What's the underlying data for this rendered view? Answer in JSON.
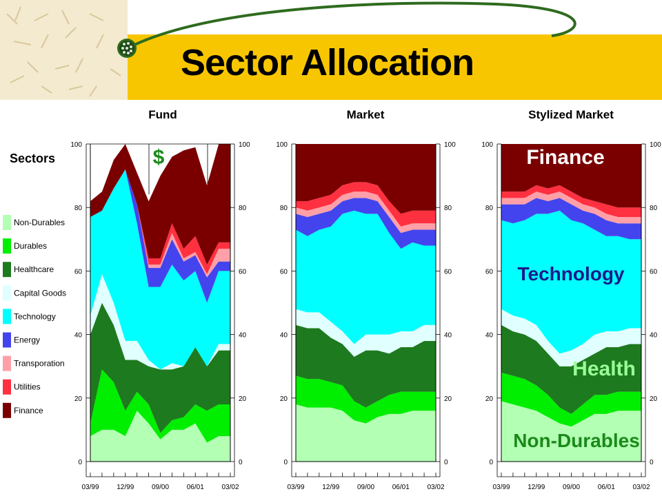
{
  "slide": {
    "title": "Sector Allocation",
    "colors": {
      "header": "#f8c600",
      "logo": "#2e6b1e",
      "arc": "#2e6b1e"
    }
  },
  "legend": {
    "title": "Sectors",
    "items": [
      {
        "label": "Non-Durables",
        "color": "#b3ffb3"
      },
      {
        "label": "Durables",
        "color": "#00ee00"
      },
      {
        "label": "Healthcare",
        "color": "#1e7a1e"
      },
      {
        "label": "Capital Goods",
        "color": "#e0ffff"
      },
      {
        "label": "Technology",
        "color": "#00ffff"
      },
      {
        "label": "Energy",
        "color": "#4444ee"
      },
      {
        "label": "Transporation",
        "color": "#ffa0a8"
      },
      {
        "label": "Utilities",
        "color": "#ff3040"
      },
      {
        "label": "Finance",
        "color": "#7a0000"
      }
    ]
  },
  "chart_data": [
    {
      "type": "area",
      "stacked": true,
      "title": "Fund",
      "x": [
        "03/99",
        "06/99",
        "09/99",
        "12/99",
        "03/00",
        "06/00",
        "09/00",
        "12/00",
        "03/01",
        "06/01",
        "09/01",
        "12/01",
        "03/02"
      ],
      "x_tick_labels": [
        "03/99",
        "12/99",
        "09/00",
        "06/01",
        "03/02"
      ],
      "ylim": [
        0,
        100
      ],
      "y_ticks": [
        0,
        20,
        40,
        60,
        80,
        100
      ],
      "annotations": [
        "$"
      ],
      "series": [
        {
          "name": "Non-Durables",
          "values": [
            8,
            10,
            10,
            8,
            16,
            12,
            7,
            10,
            10,
            12,
            6,
            8,
            8
          ]
        },
        {
          "name": "Durables",
          "values": [
            4,
            19,
            15,
            8,
            6,
            6,
            2,
            3,
            4,
            6,
            10,
            10,
            10
          ]
        },
        {
          "name": "Healthcare",
          "values": [
            28,
            21,
            18,
            16,
            10,
            12,
            20,
            16,
            16,
            18,
            14,
            17,
            17
          ]
        },
        {
          "name": "Capital Goods",
          "values": [
            6,
            9,
            7,
            6,
            6,
            2,
            0,
            2,
            0,
            0,
            0,
            2,
            2
          ]
        },
        {
          "name": "Technology",
          "values": [
            31,
            20,
            36,
            54,
            37,
            23,
            26,
            31,
            27,
            24,
            20,
            23,
            23
          ]
        },
        {
          "name": "Energy",
          "values": [
            0,
            0,
            0,
            0,
            6,
            6,
            6,
            8,
            6,
            5,
            8,
            3,
            3
          ]
        },
        {
          "name": "Transporation",
          "values": [
            0,
            0,
            0,
            0,
            0,
            1,
            1,
            2,
            1,
            1,
            1,
            4,
            4
          ]
        },
        {
          "name": "Utilities",
          "values": [
            0,
            0,
            0,
            0,
            0,
            2,
            2,
            3,
            3,
            5,
            3,
            2,
            2
          ]
        },
        {
          "name": "Finance",
          "values": [
            5,
            6,
            9,
            8,
            10,
            18,
            26,
            21,
            31,
            28,
            25,
            31,
            31
          ]
        }
      ]
    },
    {
      "type": "area",
      "stacked": true,
      "title": "Market",
      "x": [
        "03/99",
        "06/99",
        "09/99",
        "12/99",
        "03/00",
        "06/00",
        "09/00",
        "12/00",
        "03/01",
        "06/01",
        "09/01",
        "12/01",
        "03/02"
      ],
      "x_tick_labels": [
        "03/99",
        "12/99",
        "09/00",
        "06/01",
        "03/02"
      ],
      "ylim": [
        0,
        100
      ],
      "y_ticks": [
        0,
        20,
        40,
        60,
        80,
        100
      ],
      "series": [
        {
          "name": "Non-Durables",
          "values": [
            18,
            17,
            17,
            17,
            16,
            13,
            12,
            14,
            15,
            15,
            16,
            16,
            16
          ]
        },
        {
          "name": "Durables",
          "values": [
            9,
            9,
            9,
            8,
            8,
            6,
            5,
            5,
            6,
            7,
            6,
            6,
            6
          ]
        },
        {
          "name": "Healthcare",
          "values": [
            16,
            16,
            16,
            14,
            13,
            14,
            18,
            16,
            13,
            14,
            14,
            16,
            16
          ]
        },
        {
          "name": "Capital Goods",
          "values": [
            5,
            5,
            5,
            5,
            4,
            4,
            5,
            5,
            6,
            5,
            5,
            5,
            5
          ]
        },
        {
          "name": "Technology",
          "values": [
            25,
            24,
            26,
            30,
            37,
            42,
            38,
            38,
            32,
            26,
            28,
            25,
            25
          ]
        },
        {
          "name": "Energy",
          "values": [
            5,
            6,
            5,
            5,
            4,
            4,
            5,
            4,
            5,
            5,
            4,
            5,
            5
          ]
        },
        {
          "name": "Transporation",
          "values": [
            2,
            2,
            2,
            2,
            2,
            2,
            2,
            2,
            2,
            2,
            2,
            2,
            2
          ]
        },
        {
          "name": "Utilities",
          "values": [
            2,
            3,
            3,
            3,
            3,
            3,
            3,
            3,
            3,
            4,
            4,
            4,
            4
          ]
        },
        {
          "name": "Finance",
          "values": [
            18,
            18,
            17,
            16,
            13,
            12,
            12,
            13,
            18,
            22,
            21,
            21,
            21
          ]
        }
      ]
    },
    {
      "type": "area",
      "stacked": true,
      "title": "Stylized Market",
      "x": [
        "03/99",
        "06/99",
        "09/99",
        "12/99",
        "03/00",
        "06/00",
        "09/00",
        "12/00",
        "03/01",
        "06/01",
        "09/01",
        "12/01",
        "03/02"
      ],
      "x_tick_labels": [
        "03/99",
        "12/99",
        "09/00",
        "06/01",
        "03/02"
      ],
      "ylim": [
        0,
        100
      ],
      "y_ticks": [
        0,
        20,
        40,
        60,
        80,
        100
      ],
      "annotations": [
        "Finance",
        "Technology",
        "Health",
        "Non-Durables"
      ],
      "series": [
        {
          "name": "Non-Durables",
          "values": [
            19,
            18,
            17,
            16,
            14,
            12,
            11,
            13,
            15,
            15,
            16,
            16,
            16
          ]
        },
        {
          "name": "Durables",
          "values": [
            9,
            9,
            9,
            8,
            7,
            5,
            4,
            5,
            6,
            6,
            6,
            6,
            6
          ]
        },
        {
          "name": "Healthcare",
          "values": [
            15,
            14,
            14,
            14,
            13,
            13,
            15,
            14,
            13,
            15,
            14,
            15,
            15
          ]
        },
        {
          "name": "Capital Goods",
          "values": [
            5,
            5,
            5,
            5,
            4,
            4,
            5,
            5,
            6,
            5,
            5,
            5,
            5
          ]
        },
        {
          "name": "Technology",
          "values": [
            28,
            29,
            31,
            35,
            40,
            45,
            41,
            38,
            33,
            30,
            30,
            28,
            28
          ]
        },
        {
          "name": "Energy",
          "values": [
            5,
            6,
            5,
            5,
            4,
            4,
            5,
            4,
            5,
            5,
            4,
            5,
            5
          ]
        },
        {
          "name": "Transporation",
          "values": [
            2,
            2,
            2,
            2,
            2,
            2,
            2,
            2,
            2,
            2,
            2,
            2,
            2
          ]
        },
        {
          "name": "Utilities",
          "values": [
            2,
            2,
            2,
            2,
            2,
            2,
            2,
            2,
            2,
            3,
            3,
            3,
            3
          ]
        },
        {
          "name": "Finance",
          "values": [
            15,
            15,
            15,
            13,
            14,
            13,
            15,
            17,
            18,
            19,
            20,
            20,
            20
          ]
        }
      ]
    }
  ]
}
